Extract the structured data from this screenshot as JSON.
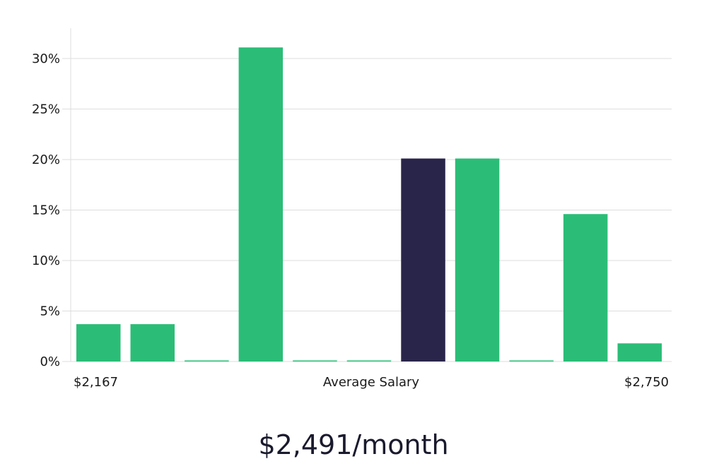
{
  "chart_data": {
    "type": "bar",
    "values": [
      3.7,
      3.7,
      0,
      31.1,
      0,
      0,
      20.1,
      20.1,
      0,
      14.6,
      1.8
    ],
    "highlight_index": 6,
    "ylim": [
      0,
      33
    ],
    "yticks": [
      0,
      5,
      10,
      15,
      20,
      25,
      30
    ],
    "ytick_labels": [
      "0%",
      "5%",
      "10%",
      "15%",
      "20%",
      "25%",
      "30%"
    ],
    "xlabel_left": "$2,167",
    "xlabel": "Average Salary",
    "xlabel_right": "$2,750",
    "grid": true,
    "colors": {
      "bar": "#2bbd77",
      "highlight": "#29254a",
      "grid": "#dddddd"
    }
  },
  "summary": {
    "value_text": "$2,491/month"
  }
}
